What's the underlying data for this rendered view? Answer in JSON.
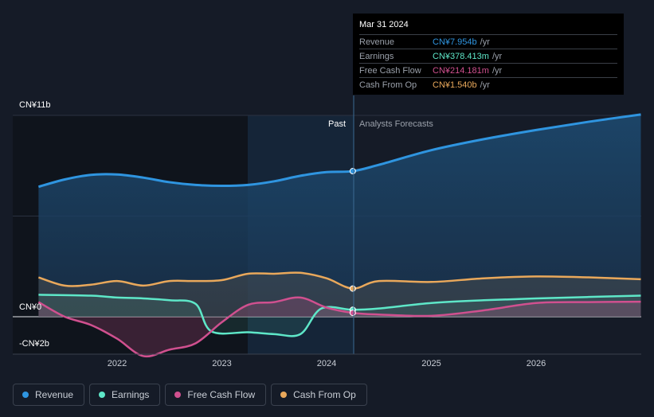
{
  "tooltip": {
    "date": "Mar 31 2024",
    "rows": [
      {
        "label": "Revenue",
        "value": "CN¥7.954b",
        "unit": "/yr",
        "color": "#2f95e0"
      },
      {
        "label": "Earnings",
        "value": "CN¥378.413m",
        "unit": "/yr",
        "color": "#5ee7c8"
      },
      {
        "label": "Free Cash Flow",
        "value": "CN¥214.181m",
        "unit": "/yr",
        "color": "#d0508f"
      },
      {
        "label": "Cash From Op",
        "value": "CN¥1.540b",
        "unit": "/yr",
        "color": "#e9a85b"
      }
    ]
  },
  "regions": {
    "past": "Past",
    "forecast": "Analysts Forecasts"
  },
  "legend": [
    {
      "label": "Revenue",
      "color": "#2f95e0"
    },
    {
      "label": "Earnings",
      "color": "#5ee7c8"
    },
    {
      "label": "Free Cash Flow",
      "color": "#d0508f"
    },
    {
      "label": "Cash From Op",
      "color": "#e9a85b"
    }
  ],
  "chart_data": {
    "type": "area",
    "ylim": [
      -2,
      11
    ],
    "y_unit": "CN¥ billions",
    "y_tick_labels": [
      "CN¥11b",
      "CN¥0",
      "-CN¥2b"
    ],
    "x_tick_labels": [
      "2022",
      "2023",
      "2024",
      "2025",
      "2026"
    ],
    "past_end": 2024.25,
    "highlight_start": 2023.25,
    "series": [
      {
        "name": "Revenue",
        "color": "#2f95e0",
        "points": [
          [
            2021.25,
            7.1
          ],
          [
            2021.5,
            7.5
          ],
          [
            2021.75,
            7.75
          ],
          [
            2022.0,
            7.77
          ],
          [
            2022.25,
            7.6
          ],
          [
            2022.5,
            7.35
          ],
          [
            2022.75,
            7.2
          ],
          [
            2023.0,
            7.15
          ],
          [
            2023.25,
            7.2
          ],
          [
            2023.5,
            7.4
          ],
          [
            2023.75,
            7.7
          ],
          [
            2024.0,
            7.9
          ],
          [
            2024.25,
            7.954
          ],
          [
            2024.5,
            8.3
          ],
          [
            2025.0,
            9.1
          ],
          [
            2025.5,
            9.7
          ],
          [
            2026.0,
            10.2
          ],
          [
            2026.5,
            10.65
          ],
          [
            2027.0,
            11.05
          ]
        ]
      },
      {
        "name": "Earnings",
        "color": "#5ee7c8",
        "points": [
          [
            2021.25,
            1.2
          ],
          [
            2021.75,
            1.15
          ],
          [
            2022.0,
            1.05
          ],
          [
            2022.25,
            1.0
          ],
          [
            2022.5,
            0.9
          ],
          [
            2022.75,
            0.7
          ],
          [
            2022.9,
            -0.8
          ],
          [
            2023.25,
            -0.85
          ],
          [
            2023.5,
            -0.95
          ],
          [
            2023.75,
            -0.95
          ],
          [
            2023.95,
            0.45
          ],
          [
            2024.25,
            0.378
          ],
          [
            2024.5,
            0.45
          ],
          [
            2025.0,
            0.75
          ],
          [
            2025.5,
            0.9
          ],
          [
            2026.0,
            1.0
          ],
          [
            2026.5,
            1.08
          ],
          [
            2027.0,
            1.15
          ]
        ]
      },
      {
        "name": "Free Cash Flow",
        "color": "#d0508f",
        "points": [
          [
            2021.25,
            0.8
          ],
          [
            2021.5,
            0.0
          ],
          [
            2021.75,
            -0.45
          ],
          [
            2022.0,
            -1.2
          ],
          [
            2022.25,
            -2.15
          ],
          [
            2022.5,
            -1.8
          ],
          [
            2022.75,
            -1.45
          ],
          [
            2023.0,
            -0.3
          ],
          [
            2023.25,
            0.65
          ],
          [
            2023.5,
            0.8
          ],
          [
            2023.75,
            1.05
          ],
          [
            2024.0,
            0.5
          ],
          [
            2024.25,
            0.214
          ],
          [
            2024.5,
            0.12
          ],
          [
            2025.0,
            0.05
          ],
          [
            2025.5,
            0.35
          ],
          [
            2026.0,
            0.75
          ],
          [
            2026.5,
            0.8
          ],
          [
            2027.0,
            0.82
          ]
        ]
      },
      {
        "name": "Cash From Op",
        "color": "#e9a85b",
        "points": [
          [
            2021.25,
            2.15
          ],
          [
            2021.5,
            1.7
          ],
          [
            2021.75,
            1.75
          ],
          [
            2022.0,
            1.95
          ],
          [
            2022.25,
            1.7
          ],
          [
            2022.5,
            1.95
          ],
          [
            2022.75,
            1.95
          ],
          [
            2023.0,
            2.0
          ],
          [
            2023.25,
            2.35
          ],
          [
            2023.5,
            2.35
          ],
          [
            2023.75,
            2.4
          ],
          [
            2024.0,
            2.1
          ],
          [
            2024.25,
            1.54
          ],
          [
            2024.5,
            1.95
          ],
          [
            2025.0,
            1.9
          ],
          [
            2025.5,
            2.1
          ],
          [
            2026.0,
            2.2
          ],
          [
            2026.5,
            2.15
          ],
          [
            2027.0,
            2.05
          ]
        ]
      }
    ]
  }
}
